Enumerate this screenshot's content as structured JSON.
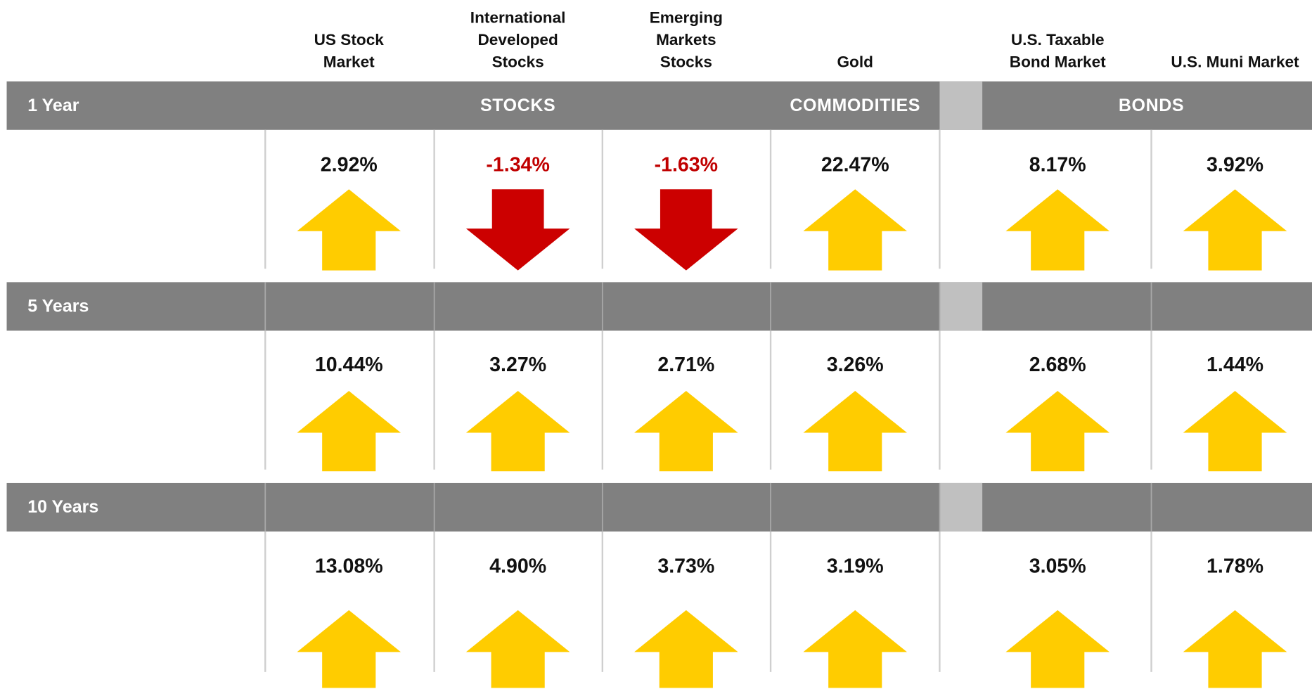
{
  "columns": [
    {
      "lines": [
        "US Stock",
        "Market"
      ]
    },
    {
      "lines": [
        "International",
        "Developed",
        "Stocks"
      ]
    },
    {
      "lines": [
        "Emerging",
        "Markets",
        "Stocks"
      ]
    },
    {
      "lines": [
        "Gold"
      ]
    },
    {
      "lines": [
        "U.S. Taxable",
        "Bond Market"
      ]
    },
    {
      "lines": [
        "U.S. Muni Market"
      ]
    }
  ],
  "groups": [
    "STOCKS",
    "COMMODITIES",
    "BONDS"
  ],
  "rows": [
    {
      "period": "1 Year",
      "values": [
        "2.92%",
        "-1.34%",
        "-1.63%",
        "22.47%",
        "8.17%",
        "3.92%"
      ]
    },
    {
      "period": "5 Years",
      "values": [
        "10.44%",
        "3.27%",
        "2.71%",
        "3.26%",
        "2.68%",
        "1.44%"
      ]
    },
    {
      "period": "10 Years",
      "values": [
        "13.08%",
        "4.90%",
        "3.73%",
        "3.19%",
        "3.05%",
        "1.78%"
      ]
    }
  ]
}
